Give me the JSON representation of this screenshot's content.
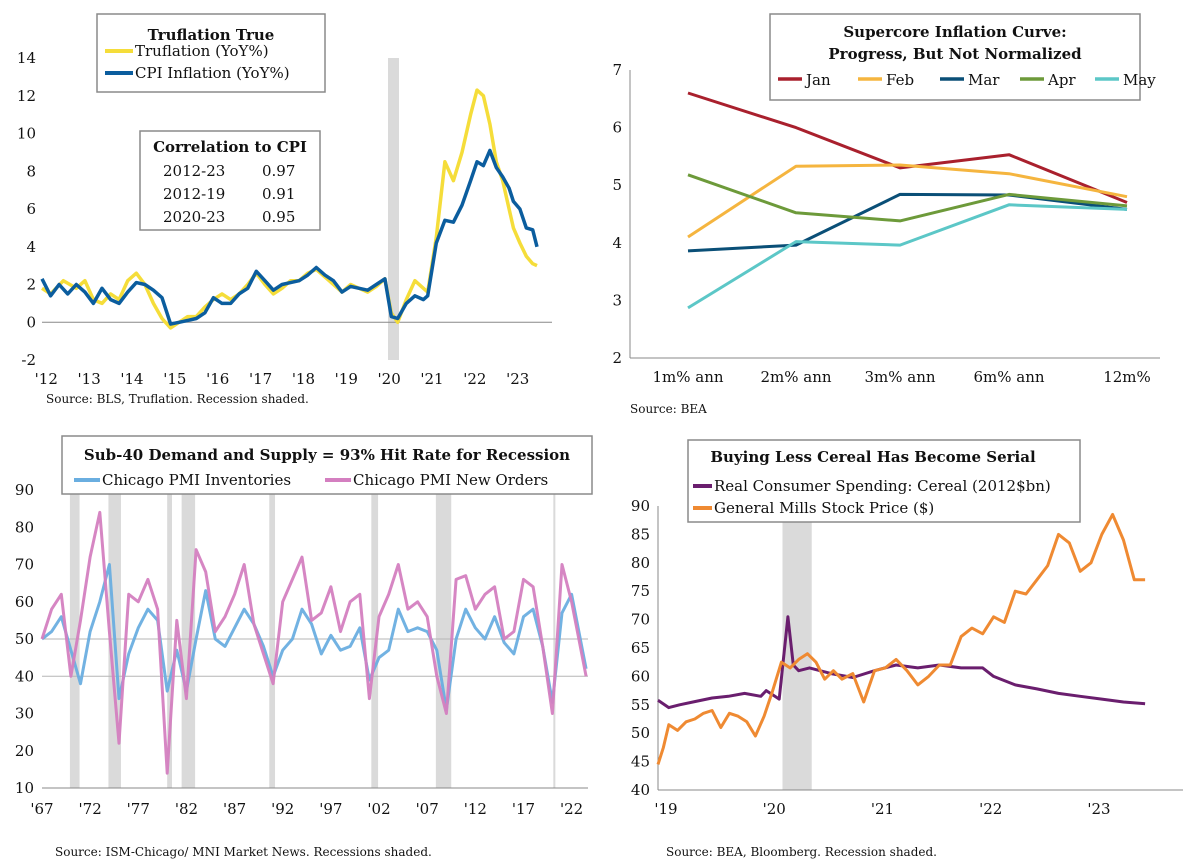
{
  "chart_data": [
    {
      "id": "truflation",
      "type": "line",
      "title": "Truflation True",
      "ylim": [
        -2,
        14
      ],
      "yticks": [
        -2,
        0,
        2,
        4,
        6,
        8,
        10,
        12,
        14
      ],
      "x_range": [
        2012.0,
        2023.9
      ],
      "xtick_labels": [
        "'12",
        "'13",
        "'14",
        "'15",
        "'16",
        "'17",
        "'18",
        "'19",
        "'20",
        "'21",
        "'22",
        "'23"
      ],
      "xtick_values": [
        2012.1,
        2013.1,
        2014.1,
        2015.1,
        2016.1,
        2017.1,
        2018.1,
        2019.1,
        2020.1,
        2021.1,
        2022.1,
        2023.1
      ],
      "recessions": [
        [
          2020.0,
          2020.25
        ]
      ],
      "source": "Source: BLS, Truflation. Recession shaded.",
      "colors": {
        "truflation": "#f5dd3a",
        "cpi": "#0b5d9e"
      },
      "series": [
        {
          "name": "Truflation (YoY%)",
          "key": "truflation",
          "x": [
            2012.0,
            2012.2,
            2012.5,
            2012.8,
            2013.0,
            2013.2,
            2013.4,
            2013.6,
            2013.8,
            2014.0,
            2014.2,
            2014.4,
            2014.6,
            2014.8,
            2015.0,
            2015.2,
            2015.4,
            2015.6,
            2015.8,
            2016.0,
            2016.2,
            2016.4,
            2016.6,
            2016.8,
            2017.0,
            2017.2,
            2017.4,
            2017.6,
            2017.8,
            2018.0,
            2018.2,
            2018.4,
            2018.6,
            2018.8,
            2019.0,
            2019.2,
            2019.4,
            2019.6,
            2019.8,
            2020.0,
            2020.15,
            2020.3,
            2020.5,
            2020.7,
            2020.9,
            2021.0,
            2021.2,
            2021.4,
            2021.6,
            2021.8,
            2022.0,
            2022.15,
            2022.3,
            2022.45,
            2022.6,
            2022.75,
            2022.9,
            2023.0,
            2023.15,
            2023.3,
            2023.45,
            2023.55
          ],
          "y": [
            1.8,
            1.5,
            2.2,
            1.8,
            2.2,
            1.2,
            1.0,
            1.5,
            1.2,
            2.2,
            2.6,
            2.0,
            1.0,
            0.2,
            -0.3,
            0.0,
            0.3,
            0.3,
            0.8,
            1.2,
            1.5,
            1.2,
            1.5,
            2.0,
            2.6,
            2.0,
            1.5,
            1.8,
            2.2,
            2.2,
            2.6,
            2.8,
            2.4,
            2.0,
            1.6,
            2.0,
            1.8,
            1.6,
            1.9,
            2.3,
            0.5,
            0.0,
            1.2,
            2.2,
            1.8,
            1.6,
            4.5,
            8.5,
            7.5,
            9.0,
            11.0,
            12.3,
            12.0,
            10.5,
            8.5,
            7.5,
            6.0,
            5.0,
            4.2,
            3.5,
            3.1,
            3.0
          ]
        },
        {
          "name": "CPI Inflation (YoY%)",
          "key": "cpi",
          "x": [
            2012.0,
            2012.2,
            2012.4,
            2012.6,
            2012.8,
            2013.0,
            2013.2,
            2013.4,
            2013.6,
            2013.8,
            2014.0,
            2014.2,
            2014.4,
            2014.6,
            2014.8,
            2015.0,
            2015.2,
            2015.4,
            2015.6,
            2015.8,
            2016.0,
            2016.2,
            2016.4,
            2016.6,
            2016.8,
            2017.0,
            2017.2,
            2017.4,
            2017.6,
            2017.8,
            2018.0,
            2018.2,
            2018.4,
            2018.6,
            2018.8,
            2019.0,
            2019.2,
            2019.4,
            2019.6,
            2019.8,
            2020.0,
            2020.15,
            2020.3,
            2020.5,
            2020.7,
            2020.9,
            2021.0,
            2021.2,
            2021.4,
            2021.6,
            2021.8,
            2022.0,
            2022.15,
            2022.3,
            2022.45,
            2022.6,
            2022.75,
            2022.9,
            2023.0,
            2023.15,
            2023.3,
            2023.45,
            2023.55
          ],
          "y": [
            2.3,
            1.4,
            2.0,
            1.5,
            2.0,
            1.6,
            1.0,
            1.8,
            1.2,
            1.0,
            1.6,
            2.1,
            2.0,
            1.7,
            1.3,
            -0.1,
            0.0,
            0.1,
            0.2,
            0.5,
            1.3,
            1.0,
            1.0,
            1.5,
            1.8,
            2.7,
            2.2,
            1.7,
            2.0,
            2.1,
            2.2,
            2.5,
            2.9,
            2.5,
            2.2,
            1.6,
            1.9,
            1.8,
            1.7,
            2.0,
            2.3,
            0.3,
            0.2,
            1.0,
            1.4,
            1.2,
            1.4,
            4.2,
            5.4,
            5.3,
            6.2,
            7.5,
            8.5,
            8.3,
            9.1,
            8.2,
            7.7,
            7.1,
            6.4,
            6.0,
            5.0,
            4.9,
            4.0
          ]
        }
      ],
      "correlation": {
        "title": "Correlation to CPI",
        "rows": [
          {
            "period": "2012-23",
            "value": "0.97"
          },
          {
            "period": "2012-19",
            "value": "0.91"
          },
          {
            "period": "2020-23",
            "value": "0.95"
          }
        ]
      }
    },
    {
      "id": "supercore",
      "type": "line",
      "title": "Supercore Inflation Curve:",
      "subtitle": "Progress, But Not Normalized",
      "categories": [
        "1m% ann",
        "2m% ann",
        "3m% ann",
        "6m% ann",
        "12m%"
      ],
      "ylim": [
        2,
        7
      ],
      "yticks": [
        2,
        3,
        4,
        5,
        6,
        7
      ],
      "source": "Source: BEA",
      "series": [
        {
          "name": "Jan",
          "color": "#a9202d",
          "values": [
            6.6,
            6.0,
            5.3,
            5.53,
            4.7
          ]
        },
        {
          "name": "Feb",
          "color": "#f5b53f",
          "values": [
            4.1,
            5.33,
            5.35,
            5.2,
            4.8
          ]
        },
        {
          "name": "Mar",
          "color": "#0a4f77",
          "values": [
            3.86,
            3.96,
            4.84,
            4.83,
            4.58
          ]
        },
        {
          "name": "Apr",
          "color": "#6d9a3a",
          "values": [
            5.18,
            4.52,
            4.38,
            4.84,
            4.64
          ]
        },
        {
          "name": "May",
          "color": "#5cc7c7",
          "values": [
            2.87,
            4.02,
            3.96,
            4.66,
            4.58
          ]
        }
      ]
    },
    {
      "id": "chicago-pmi",
      "type": "line",
      "title": "Sub-40 Demand and Supply = 93% Hit Rate for Recession",
      "ylim": [
        10,
        90
      ],
      "yticks": [
        10,
        20,
        30,
        40,
        50,
        60,
        70,
        80,
        90
      ],
      "x_range": [
        1967.0,
        2023.7
      ],
      "xtick_labels": [
        "'67",
        "'72",
        "'77",
        "'82",
        "'87",
        "'92",
        "'97",
        "'02",
        "'07",
        "'12",
        "'17",
        "'22"
      ],
      "xtick_values": [
        1967,
        1972,
        1977,
        1982,
        1987,
        1992,
        1997,
        2002,
        2007,
        2012,
        2017,
        2022
      ],
      "recessions": [
        [
          1969.9,
          1970.9
        ],
        [
          1973.9,
          1975.2
        ],
        [
          1980.0,
          1980.5
        ],
        [
          1981.5,
          1982.9
        ],
        [
          1990.6,
          1991.2
        ],
        [
          2001.2,
          2001.9
        ],
        [
          2007.9,
          2009.5
        ],
        [
          2020.1,
          2020.3
        ]
      ],
      "source": "Source: ISM-Chicago/ MNI Market News. Recessions shaded.",
      "series": [
        {
          "name": "Chicago PMI Inventories",
          "color": "#6aaee0",
          "x": [
            1967,
            1968,
            1969,
            1970,
            1971,
            1972,
            1973,
            1974,
            1975,
            1976,
            1977,
            1978,
            1979,
            1980,
            1981,
            1982,
            1983,
            1984,
            1985,
            1986,
            1987,
            1988,
            1989,
            1990,
            1991,
            1992,
            1993,
            1994,
            1995,
            1996,
            1997,
            1998,
            1999,
            2000,
            2001,
            2002,
            2003,
            2004,
            2005,
            2006,
            2007,
            2008,
            2009,
            2010,
            2011,
            2012,
            2013,
            2014,
            2015,
            2016,
            2017,
            2018,
            2019,
            2020,
            2021,
            2022,
            2023.5
          ],
          "y": [
            50,
            52,
            56,
            47,
            38,
            52,
            60,
            70,
            34,
            46,
            53,
            58,
            55,
            36,
            47,
            36,
            50,
            63,
            50,
            48,
            53,
            58,
            54,
            48,
            40,
            47,
            50,
            58,
            54,
            46,
            51,
            47,
            48,
            53,
            39,
            45,
            47,
            58,
            52,
            53,
            52,
            47,
            31,
            50,
            58,
            53,
            50,
            56,
            49,
            46,
            56,
            58,
            48,
            33,
            57,
            62,
            42
          ]
        },
        {
          "name": "Chicago PMI New Orders",
          "color": "#d47fc0",
          "x": [
            1967,
            1968,
            1969,
            1970,
            1971,
            1972,
            1973,
            1974,
            1975,
            1976,
            1977,
            1978,
            1979,
            1980,
            1981,
            1982,
            1983,
            1984,
            1985,
            1986,
            1987,
            1988,
            1989,
            1990,
            1991,
            1992,
            1993,
            1994,
            1995,
            1996,
            1997,
            1998,
            1999,
            2000,
            2001,
            2002,
            2003,
            2004,
            2005,
            2006,
            2007,
            2008,
            2009,
            2010,
            2011,
            2012,
            2013,
            2014,
            2015,
            2016,
            2017,
            2018,
            2019,
            2020,
            2021,
            2022,
            2023.5
          ],
          "y": [
            50,
            58,
            62,
            40,
            55,
            72,
            84,
            52,
            22,
            62,
            60,
            66,
            58,
            14,
            55,
            34,
            74,
            68,
            52,
            56,
            62,
            70,
            54,
            46,
            38,
            60,
            66,
            72,
            55,
            57,
            64,
            52,
            60,
            62,
            34,
            56,
            62,
            70,
            58,
            60,
            56,
            40,
            30,
            66,
            67,
            58,
            62,
            64,
            50,
            52,
            66,
            64,
            48,
            30,
            70,
            60,
            40
          ]
        }
      ]
    },
    {
      "id": "cereal",
      "type": "line",
      "title": "Buying Less Cereal Has Become Serial",
      "ylim": [
        40,
        90
      ],
      "yticks": [
        40,
        45,
        50,
        55,
        60,
        65,
        70,
        75,
        80,
        85,
        90
      ],
      "x_range": [
        2019.0,
        2023.85
      ],
      "xtick_labels": [
        "'19",
        "'20",
        "'21",
        "'22",
        "'23"
      ],
      "xtick_values": [
        2019.0,
        2020.0,
        2021.0,
        2022.0,
        2023.0
      ],
      "recessions": [
        [
          2020.15,
          2020.42
        ]
      ],
      "source": "Source: BEA, Bloomberg. Recession shaded.",
      "series": [
        {
          "name": "Real Consumer Spending: Cereal (2012$bn)",
          "color": "#6a1e6e",
          "x": [
            2019.0,
            2019.1,
            2019.2,
            2019.35,
            2019.5,
            2019.65,
            2019.8,
            2019.95,
            2020.0,
            2020.08,
            2020.12,
            2020.2,
            2020.25,
            2020.3,
            2020.4,
            2020.6,
            2020.8,
            2021.0,
            2021.2,
            2021.4,
            2021.6,
            2021.8,
            2022.0,
            2022.1,
            2022.3,
            2022.5,
            2022.7,
            2022.9,
            2023.1,
            2023.3,
            2023.5
          ],
          "y": [
            55.8,
            54.5,
            55.0,
            55.6,
            56.2,
            56.5,
            57.0,
            56.5,
            57.5,
            56.5,
            56.0,
            70.5,
            62.0,
            61.0,
            61.5,
            60.5,
            59.8,
            61.0,
            62.0,
            61.5,
            62.0,
            61.5,
            61.5,
            60.0,
            58.5,
            57.8,
            57.0,
            56.5,
            56.0,
            55.5,
            55.2
          ]
        },
        {
          "name": "General Mills Stock Price ($)",
          "color": "#ef8a32",
          "x": [
            2019.0,
            2019.05,
            2019.1,
            2019.18,
            2019.26,
            2019.34,
            2019.42,
            2019.5,
            2019.58,
            2019.66,
            2019.74,
            2019.82,
            2019.9,
            2019.98,
            2020.06,
            2020.14,
            2020.22,
            2020.3,
            2020.38,
            2020.46,
            2020.54,
            2020.62,
            2020.7,
            2020.8,
            2020.9,
            2021.0,
            2021.1,
            2021.2,
            2021.3,
            2021.4,
            2021.5,
            2021.6,
            2021.7,
            2021.8,
            2021.9,
            2022.0,
            2022.1,
            2022.2,
            2022.3,
            2022.4,
            2022.5,
            2022.6,
            2022.7,
            2022.8,
            2022.9,
            2023.0,
            2023.1,
            2023.2,
            2023.3,
            2023.4,
            2023.5
          ],
          "y": [
            44.5,
            47.5,
            51.5,
            50.5,
            52.0,
            52.5,
            53.5,
            54.0,
            51.0,
            53.5,
            53.0,
            52.0,
            49.5,
            53.0,
            57.5,
            62.5,
            61.5,
            63.0,
            64.0,
            62.5,
            59.5,
            61.0,
            59.5,
            60.5,
            55.5,
            61.0,
            61.5,
            63.0,
            61.0,
            58.5,
            60.0,
            62.0,
            62.0,
            67.0,
            68.5,
            67.5,
            70.5,
            69.5,
            75.0,
            74.5,
            77.0,
            79.5,
            85.0,
            83.5,
            78.5,
            80.0,
            85.0,
            88.5,
            84.0,
            77.0,
            77.0
          ]
        }
      ]
    }
  ]
}
